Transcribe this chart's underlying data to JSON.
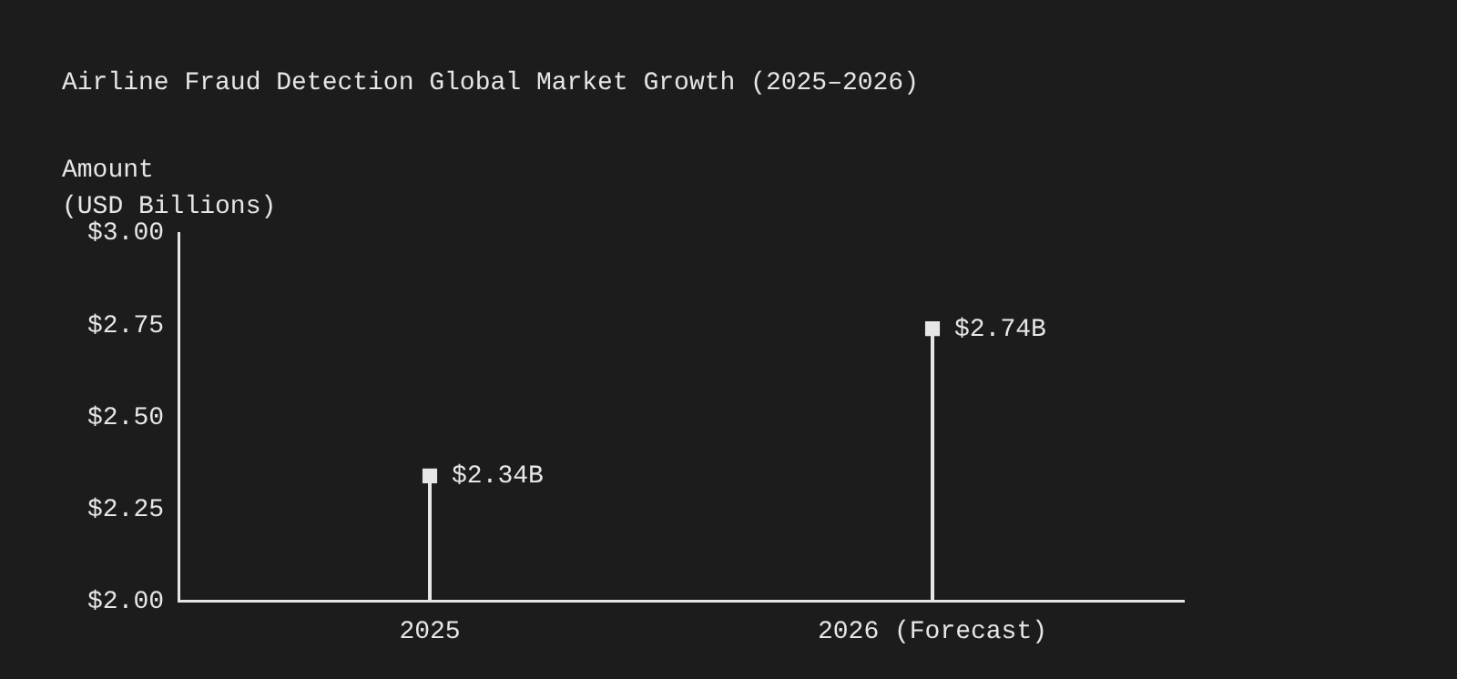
{
  "chart_data": {
    "type": "lollipop",
    "title": "Airline Fraud Detection Global Market Growth (2025–2026)",
    "ylabel": "Amount\n(USD Billions)",
    "categories": [
      "2025",
      "2026 (Forecast)"
    ],
    "values": [
      2.34,
      2.74
    ],
    "value_labels": [
      "$2.34B",
      "$2.74B"
    ],
    "color": "#e6e6e6",
    "marker": "square",
    "ylim": [
      2,
      3
    ],
    "yticks": [
      {
        "value": 2,
        "label": "$2.00"
      },
      {
        "value": 2.25,
        "label": "$2.25"
      },
      {
        "value": 2.5,
        "label": "$2.50"
      },
      {
        "value": 2.75,
        "label": "$2.75"
      },
      {
        "value": 3,
        "label": "$3.00"
      }
    ],
    "legend": false
  }
}
